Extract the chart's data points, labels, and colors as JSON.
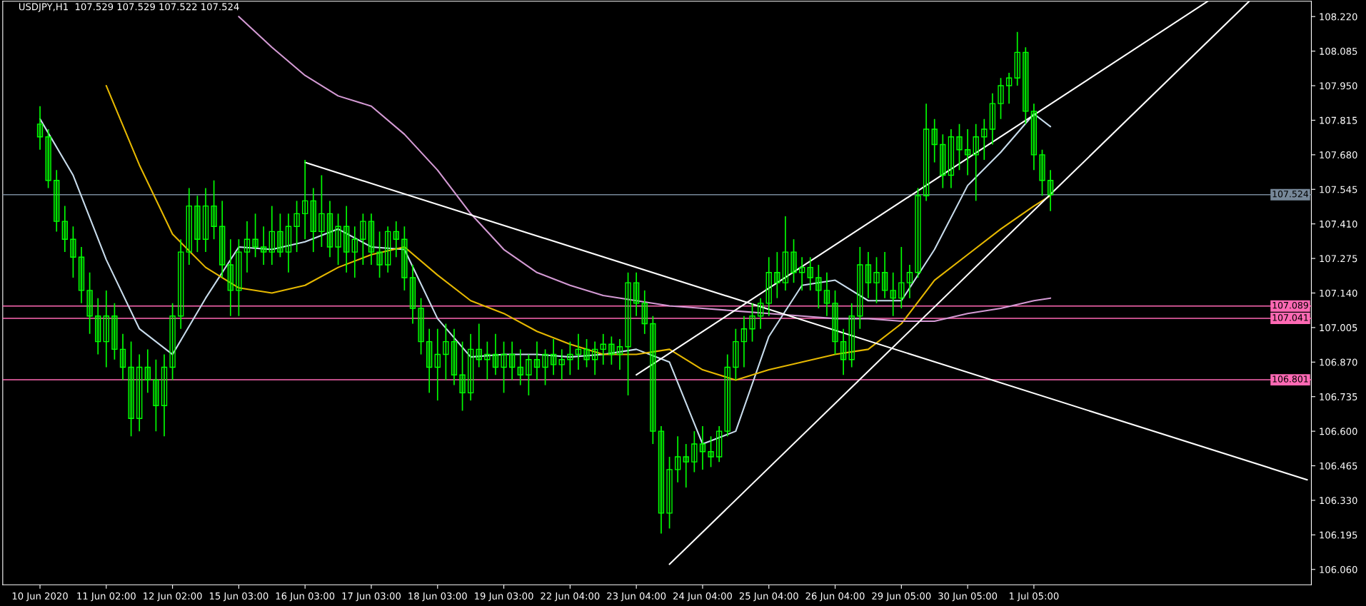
{
  "chart_data": {
    "type": "candlestick",
    "title": "USDJPY,H1  107.529 107.529 107.522 107.524",
    "color": "#00ff00",
    "categories": [
      "10 Jun 2020",
      null,
      null,
      null,
      null,
      null,
      null,
      null,
      "11 Jun 02:00",
      null,
      null,
      null,
      null,
      null,
      null,
      null,
      "12 Jun 02:00",
      null,
      null,
      null,
      null,
      null,
      null,
      null,
      "15 Jun 03:00",
      null,
      null,
      null,
      null,
      null,
      null,
      null,
      "16 Jun 03:00",
      null,
      null,
      null,
      null,
      null,
      null,
      null,
      "17 Jun 03:00",
      null,
      null,
      null,
      null,
      null,
      null,
      null,
      "18 Jun 03:00",
      null,
      null,
      null,
      null,
      null,
      null,
      null,
      "19 Jun 03:00",
      null,
      null,
      null,
      null,
      null,
      null,
      null,
      "22 Jun 04:00",
      null,
      null,
      null,
      null,
      null,
      null,
      null,
      "23 Jun 04:00",
      null,
      null,
      null,
      null,
      null,
      null,
      null,
      "24 Jun 04:00",
      null,
      null,
      null,
      null,
      null,
      null,
      null,
      "25 Jun 04:00",
      null,
      null,
      null,
      null,
      null,
      null,
      null,
      "26 Jun 04:00",
      null,
      null,
      null,
      null,
      null,
      null,
      null,
      "29 Jun 05:00",
      null,
      null,
      null,
      null,
      null,
      null,
      null,
      "30 Jun 05:00",
      null,
      null,
      null,
      null,
      null,
      null,
      null,
      "1 Jul 05:00",
      null,
      null,
      null,
      null,
      null,
      null,
      null,
      null,
      null,
      null,
      null,
      null,
      null,
      null,
      null,
      null,
      null,
      null,
      null,
      null,
      null,
      null,
      null,
      null,
      null,
      null,
      null,
      null,
      null,
      null,
      null,
      null,
      null
    ],
    "ohlc": [
      [
        107.8,
        107.87,
        107.7,
        107.75
      ],
      [
        107.75,
        107.78,
        107.55,
        107.58
      ],
      [
        107.58,
        107.62,
        107.38,
        107.42
      ],
      [
        107.42,
        107.48,
        107.3,
        107.35
      ],
      [
        107.35,
        107.4,
        107.2,
        107.28
      ],
      [
        107.28,
        107.32,
        107.1,
        107.15
      ],
      [
        107.15,
        107.22,
        106.98,
        107.05
      ],
      [
        107.05,
        107.12,
        106.9,
        106.95
      ],
      [
        106.95,
        107.15,
        106.85,
        107.05
      ],
      [
        107.05,
        107.1,
        106.88,
        106.92
      ],
      [
        106.92,
        106.98,
        106.8,
        106.85
      ],
      [
        106.85,
        106.95,
        106.58,
        106.65
      ],
      [
        106.65,
        106.9,
        106.6,
        106.85
      ],
      [
        106.85,
        106.92,
        106.75,
        106.8
      ],
      [
        106.8,
        106.88,
        106.6,
        106.7
      ],
      [
        106.7,
        106.9,
        106.58,
        106.85
      ],
      [
        106.85,
        107.1,
        106.8,
        107.05
      ],
      [
        107.05,
        107.35,
        107.0,
        107.3
      ],
      [
        107.3,
        107.55,
        107.25,
        107.48
      ],
      [
        107.48,
        107.52,
        107.3,
        107.35
      ],
      [
        107.35,
        107.55,
        107.3,
        107.48
      ],
      [
        107.48,
        107.58,
        107.35,
        107.4
      ],
      [
        107.4,
        107.5,
        107.2,
        107.25
      ],
      [
        107.25,
        107.35,
        107.05,
        107.15
      ],
      [
        107.15,
        107.35,
        107.05,
        107.3
      ],
      [
        107.3,
        107.42,
        107.22,
        107.35
      ],
      [
        107.35,
        107.45,
        107.28,
        107.32
      ],
      [
        107.32,
        107.4,
        107.25,
        107.3
      ],
      [
        107.3,
        107.48,
        107.25,
        107.38
      ],
      [
        107.38,
        107.45,
        107.28,
        107.3
      ],
      [
        107.3,
        107.45,
        107.22,
        107.4
      ],
      [
        107.4,
        107.5,
        107.3,
        107.45
      ],
      [
        107.45,
        107.66,
        107.35,
        107.5
      ],
      [
        107.5,
        107.55,
        107.3,
        107.38
      ],
      [
        107.38,
        107.6,
        107.32,
        107.45
      ],
      [
        107.45,
        107.5,
        107.28,
        107.32
      ],
      [
        107.32,
        107.45,
        107.25,
        107.4
      ],
      [
        107.4,
        107.48,
        107.22,
        107.3
      ],
      [
        107.3,
        107.4,
        107.2,
        107.35
      ],
      [
        107.35,
        107.45,
        107.25,
        107.42
      ],
      [
        107.42,
        107.45,
        107.25,
        107.3
      ],
      [
        107.3,
        107.38,
        107.2,
        107.25
      ],
      [
        107.25,
        107.4,
        107.22,
        107.38
      ],
      [
        107.38,
        107.42,
        107.28,
        107.35
      ],
      [
        107.35,
        107.4,
        107.15,
        107.2
      ],
      [
        107.2,
        107.25,
        107.02,
        107.08
      ],
      [
        107.08,
        107.12,
        106.9,
        106.95
      ],
      [
        106.95,
        107.0,
        106.75,
        106.85
      ],
      [
        106.85,
        107.0,
        106.72,
        106.9
      ],
      [
        106.9,
        107.02,
        106.8,
        106.95
      ],
      [
        106.95,
        107.0,
        106.78,
        106.82
      ],
      [
        106.82,
        106.95,
        106.68,
        106.75
      ],
      [
        106.75,
        106.98,
        106.72,
        106.92
      ],
      [
        106.92,
        107.02,
        106.85,
        106.88
      ],
      [
        106.88,
        106.95,
        106.8,
        106.9
      ],
      [
        106.9,
        106.98,
        106.82,
        106.85
      ],
      [
        106.85,
        106.95,
        106.75,
        106.9
      ],
      [
        106.9,
        106.95,
        106.8,
        106.85
      ],
      [
        106.85,
        106.92,
        106.78,
        106.82
      ],
      [
        106.82,
        106.9,
        106.74,
        106.88
      ],
      [
        106.88,
        106.95,
        106.8,
        106.85
      ],
      [
        106.85,
        106.92,
        106.78,
        106.9
      ],
      [
        106.9,
        106.96,
        106.82,
        106.86
      ],
      [
        106.86,
        106.92,
        106.8,
        106.88
      ],
      [
        106.88,
        106.95,
        106.82,
        106.9
      ],
      [
        106.9,
        106.98,
        106.84,
        106.92
      ],
      [
        106.92,
        106.96,
        106.85,
        106.88
      ],
      [
        106.88,
        106.95,
        106.82,
        106.92
      ],
      [
        106.92,
        106.98,
        106.86,
        106.94
      ],
      [
        106.94,
        106.97,
        106.86,
        106.9
      ],
      [
        106.9,
        106.96,
        106.84,
        106.93
      ],
      [
        106.93,
        107.22,
        106.74,
        107.18
      ],
      [
        107.18,
        107.22,
        107.05,
        107.1
      ],
      [
        107.1,
        107.15,
        106.98,
        107.02
      ],
      [
        107.02,
        107.05,
        106.55,
        106.6
      ],
      [
        106.6,
        106.62,
        106.2,
        106.28
      ],
      [
        106.28,
        106.5,
        106.22,
        106.45
      ],
      [
        106.45,
        106.58,
        106.4,
        106.5
      ],
      [
        106.5,
        106.55,
        106.38,
        106.48
      ],
      [
        106.48,
        106.6,
        106.44,
        106.55
      ],
      [
        106.55,
        106.62,
        106.45,
        106.52
      ],
      [
        106.52,
        106.58,
        106.46,
        106.5
      ],
      [
        106.5,
        106.62,
        106.48,
        106.6
      ],
      [
        106.6,
        106.9,
        106.58,
        106.85
      ],
      [
        106.85,
        107.0,
        106.8,
        106.95
      ],
      [
        106.95,
        107.05,
        106.85,
        107.0
      ],
      [
        107.0,
        107.1,
        106.95,
        107.05
      ],
      [
        107.05,
        107.12,
        107.0,
        107.1
      ],
      [
        107.1,
        107.28,
        107.05,
        107.22
      ],
      [
        107.22,
        107.3,
        107.12,
        107.18
      ],
      [
        107.18,
        107.44,
        107.15,
        107.3
      ],
      [
        107.3,
        107.35,
        107.18,
        107.22
      ],
      [
        107.22,
        107.28,
        107.15,
        107.24
      ],
      [
        107.24,
        107.28,
        107.15,
        107.2
      ],
      [
        107.2,
        107.25,
        107.08,
        107.15
      ],
      [
        107.15,
        107.22,
        107.05,
        107.1
      ],
      [
        107.1,
        107.15,
        106.9,
        106.95
      ],
      [
        106.95,
        107.0,
        106.82,
        106.88
      ],
      [
        106.88,
        107.1,
        106.85,
        107.05
      ],
      [
        107.05,
        107.32,
        107.0,
        107.25
      ],
      [
        107.25,
        107.3,
        107.12,
        107.18
      ],
      [
        107.18,
        107.28,
        107.1,
        107.22
      ],
      [
        107.22,
        107.3,
        107.12,
        107.15
      ],
      [
        107.15,
        107.22,
        107.05,
        107.12
      ],
      [
        107.12,
        107.32,
        107.08,
        107.18
      ],
      [
        107.18,
        107.25,
        107.12,
        107.22
      ],
      [
        107.22,
        107.55,
        107.2,
        107.52
      ],
      [
        107.52,
        107.88,
        107.5,
        107.78
      ],
      [
        107.78,
        107.82,
        107.65,
        107.72
      ],
      [
        107.72,
        107.76,
        107.55,
        107.6
      ],
      [
        107.6,
        107.78,
        107.55,
        107.75
      ],
      [
        107.75,
        107.8,
        107.62,
        107.7
      ],
      [
        107.7,
        107.78,
        107.6,
        107.68
      ],
      [
        107.68,
        107.8,
        107.5,
        107.75
      ],
      [
        107.75,
        107.82,
        107.66,
        107.78
      ],
      [
        107.78,
        107.92,
        107.72,
        107.88
      ],
      [
        107.88,
        107.98,
        107.82,
        107.95
      ],
      [
        107.95,
        108.0,
        107.88,
        107.98
      ],
      [
        107.98,
        108.16,
        107.95,
        108.08
      ],
      [
        108.08,
        108.1,
        107.8,
        107.85
      ],
      [
        107.85,
        107.88,
        107.62,
        107.68
      ],
      [
        107.68,
        107.7,
        107.52,
        107.58
      ],
      [
        107.58,
        107.62,
        107.46,
        107.524
      ],
      null,
      null,
      null,
      null,
      null,
      null,
      null,
      null,
      null,
      null,
      null,
      null,
      null,
      null,
      null,
      null,
      null,
      null,
      null,
      null,
      null,
      null,
      null,
      null,
      null,
      null,
      null,
      null,
      null,
      null,
      null
    ],
    "series": [
      {
        "type": "line",
        "color": "#c8dcec",
        "values": [
          107.82,
          null,
          null,
          null,
          107.6,
          null,
          null,
          null,
          107.27,
          null,
          null,
          null,
          107.0,
          null,
          null,
          null,
          106.9,
          null,
          null,
          null,
          107.12,
          null,
          null,
          null,
          107.32,
          null,
          null,
          null,
          107.31,
          null,
          null,
          null,
          107.34,
          null,
          null,
          null,
          107.39,
          null,
          null,
          null,
          107.32,
          null,
          null,
          null,
          107.31,
          null,
          null,
          null,
          107.04,
          null,
          null,
          null,
          106.89,
          null,
          null,
          null,
          106.9,
          null,
          null,
          null,
          106.9,
          null,
          null,
          null,
          106.89,
          null,
          null,
          null,
          106.9,
          null,
          null,
          null,
          106.92,
          null,
          null,
          null,
          106.87,
          null,
          null,
          null,
          106.55,
          null,
          null,
          null,
          106.6,
          null,
          null,
          null,
          106.97,
          null,
          null,
          null,
          107.17,
          null,
          null,
          null,
          107.19,
          null,
          null,
          null,
          107.11,
          null,
          null,
          null,
          107.11,
          null,
          null,
          null,
          107.31,
          null,
          null,
          null,
          107.56,
          null,
          null,
          null,
          107.69,
          null,
          null,
          null,
          107.84,
          null,
          107.79,
          null,
          null,
          null,
          null,
          null,
          null,
          null,
          null,
          null,
          null,
          null,
          null,
          null,
          null,
          null,
          null,
          null,
          null,
          null,
          null,
          null,
          null,
          null,
          null,
          null,
          null,
          null,
          null,
          null,
          null,
          null
        ]
      },
      {
        "type": "line",
        "color": "#e6b800",
        "values": [
          null,
          null,
          null,
          null,
          null,
          null,
          null,
          null,
          107.95,
          null,
          null,
          null,
          107.64,
          null,
          null,
          null,
          107.37,
          null,
          null,
          null,
          107.24,
          null,
          null,
          null,
          107.16,
          null,
          null,
          null,
          107.14,
          null,
          null,
          null,
          107.17,
          null,
          null,
          null,
          107.24,
          null,
          null,
          null,
          107.29,
          null,
          null,
          null,
          107.32,
          null,
          null,
          null,
          107.21,
          null,
          null,
          null,
          107.11,
          null,
          null,
          null,
          107.06,
          null,
          null,
          null,
          106.99,
          null,
          null,
          null,
          106.94,
          null,
          null,
          null,
          106.9,
          null,
          null,
          null,
          106.9,
          null,
          null,
          null,
          106.92,
          null,
          null,
          null,
          106.84,
          null,
          null,
          null,
          106.8,
          null,
          null,
          null,
          106.84,
          null,
          null,
          null,
          106.87,
          null,
          null,
          null,
          106.9,
          null,
          null,
          null,
          106.92,
          null,
          null,
          null,
          107.02,
          null,
          null,
          null,
          107.19,
          null,
          null,
          null,
          107.29,
          null,
          null,
          null,
          107.39,
          null,
          null,
          null,
          107.48,
          null,
          107.52,
          null,
          null,
          null,
          null,
          null,
          null,
          null,
          null,
          null,
          null,
          null,
          null,
          null,
          null,
          null,
          null,
          null,
          null,
          null,
          null,
          null,
          null,
          null,
          null,
          null,
          null,
          null,
          null,
          null,
          null,
          null
        ]
      },
      {
        "type": "line",
        "color": "#d49ad4",
        "values": [
          null,
          null,
          null,
          null,
          null,
          null,
          null,
          null,
          null,
          null,
          null,
          null,
          null,
          null,
          null,
          null,
          null,
          null,
          null,
          null,
          null,
          null,
          null,
          null,
          108.22,
          null,
          null,
          null,
          108.1,
          null,
          null,
          null,
          107.99,
          null,
          null,
          null,
          107.91,
          null,
          null,
          null,
          107.87,
          null,
          null,
          null,
          107.76,
          null,
          null,
          null,
          107.62,
          null,
          null,
          null,
          107.45,
          null,
          null,
          null,
          107.31,
          null,
          null,
          null,
          107.22,
          null,
          null,
          null,
          107.17,
          null,
          null,
          null,
          107.13,
          null,
          null,
          null,
          107.11,
          null,
          null,
          null,
          107.09,
          null,
          null,
          null,
          107.08,
          null,
          null,
          null,
          107.07,
          null,
          null,
          null,
          107.06,
          null,
          null,
          null,
          107.05,
          null,
          null,
          null,
          107.04,
          null,
          null,
          null,
          107.04,
          null,
          null,
          null,
          107.03,
          null,
          null,
          null,
          107.03,
          null,
          null,
          null,
          107.06,
          null,
          null,
          null,
          107.08,
          null,
          null,
          null,
          107.11,
          null,
          107.12,
          null,
          null,
          null,
          null,
          null,
          null,
          null,
          null,
          null,
          null,
          null,
          null,
          null,
          null,
          null,
          null,
          null,
          null,
          null,
          null,
          null,
          null,
          null,
          null,
          null,
          null,
          null,
          null,
          null,
          null,
          null
        ]
      },
      {
        "type": "line",
        "color": "#ffffff",
        "values": [
          null,
          null,
          null,
          null,
          null,
          null,
          null,
          null,
          null,
          null,
          null,
          null,
          null,
          null,
          null,
          null,
          null,
          null,
          null,
          null,
          null,
          null,
          null,
          null,
          null,
          null,
          null,
          null,
          null,
          null,
          null,
          null,
          107.65,
          null,
          null,
          null,
          null,
          null,
          null,
          null,
          null,
          null,
          null,
          null,
          null,
          null,
          null,
          null,
          null,
          null,
          null,
          null,
          null,
          null,
          null,
          null,
          null,
          null,
          null,
          null,
          null,
          null,
          null,
          null,
          null,
          null,
          null,
          null,
          null,
          null,
          null,
          null,
          null,
          null,
          null,
          null,
          null,
          null,
          null,
          null,
          null,
          null,
          null,
          null,
          null,
          null,
          null,
          null,
          null,
          null,
          null,
          null,
          null,
          null,
          null,
          null,
          null,
          null,
          null,
          null,
          null,
          null,
          null,
          null,
          null,
          null,
          null,
          null,
          null,
          null,
          null,
          null,
          null,
          null,
          null,
          null,
          null,
          null,
          null,
          null,
          null,
          null,
          null,
          null,
          null,
          null,
          null,
          null,
          null,
          null,
          null,
          null,
          null,
          null,
          null,
          null,
          null,
          null,
          null,
          null,
          null,
          null,
          null,
          null,
          null,
          null,
          null,
          null,
          null,
          null,
          null,
          null,
          null,
          106.41
        ]
      },
      {
        "type": "line",
        "color": "#ffffff",
        "values": [
          null,
          null,
          null,
          null,
          null,
          null,
          null,
          null,
          null,
          null,
          null,
          null,
          null,
          null,
          null,
          null,
          null,
          null,
          null,
          null,
          null,
          null,
          null,
          null,
          null,
          null,
          null,
          null,
          null,
          null,
          null,
          null,
          null,
          null,
          null,
          null,
          null,
          null,
          null,
          null,
          null,
          null,
          null,
          null,
          null,
          null,
          null,
          null,
          null,
          null,
          null,
          null,
          null,
          null,
          null,
          null,
          null,
          null,
          null,
          null,
          null,
          null,
          null,
          null,
          null,
          null,
          null,
          null,
          null,
          null,
          null,
          null,
          null,
          null,
          null,
          null,
          106.08,
          null,
          null,
          null,
          null,
          null,
          null,
          null,
          null,
          null,
          null,
          null,
          null,
          null,
          null,
          null,
          null,
          null,
          null,
          null,
          null,
          null,
          null,
          null,
          null,
          null,
          null,
          null,
          null,
          null,
          null,
          null,
          null,
          null,
          null,
          null,
          null,
          null,
          null,
          null,
          null,
          null,
          null,
          null,
          null,
          null,
          null,
          null,
          null,
          null,
          null,
          null,
          null,
          null,
          null,
          null,
          null,
          null,
          null,
          null,
          null,
          null,
          null,
          null,
          null,
          null,
          null,
          null,
          null,
          null,
          108.28,
          null,
          null,
          null,
          null,
          null,
          null,
          null
        ]
      },
      {
        "type": "line",
        "color": "#ffffff",
        "values": [
          null,
          null,
          null,
          null,
          null,
          null,
          null,
          null,
          null,
          null,
          null,
          null,
          null,
          null,
          null,
          null,
          null,
          null,
          null,
          null,
          null,
          null,
          null,
          null,
          null,
          null,
          null,
          null,
          null,
          null,
          null,
          null,
          null,
          null,
          null,
          null,
          null,
          null,
          null,
          null,
          null,
          null,
          null,
          null,
          null,
          null,
          null,
          null,
          null,
          null,
          null,
          null,
          null,
          null,
          null,
          null,
          null,
          null,
          null,
          null,
          null,
          null,
          null,
          null,
          null,
          null,
          null,
          null,
          null,
          null,
          null,
          null,
          106.82,
          null,
          null,
          null,
          null,
          null,
          null,
          null,
          null,
          null,
          null,
          null,
          null,
          null,
          null,
          null,
          null,
          null,
          null,
          null,
          null,
          null,
          null,
          null,
          null,
          null,
          null,
          null,
          null,
          null,
          null,
          null,
          null,
          null,
          null,
          null,
          null,
          null,
          null,
          null,
          null,
          null,
          null,
          null,
          null,
          null,
          null,
          null,
          null,
          null,
          null,
          null,
          null,
          null,
          null,
          null,
          null,
          null,
          null,
          null,
          null,
          null,
          null,
          null,
          null,
          null,
          null,
          null,
          null,
          108.28,
          null,
          null,
          null,
          null,
          null,
          null,
          null,
          null,
          null,
          null,
          null,
          null
        ]
      }
    ],
    "ylim": [
      106.0,
      108.28
    ],
    "yticks": [
      {
        "value": 106.06,
        "label": "106.060"
      },
      {
        "value": 106.195,
        "label": "106.195"
      },
      {
        "value": 106.33,
        "label": "106.330"
      },
      {
        "value": 106.465,
        "label": "106.465"
      },
      {
        "value": 106.6,
        "label": "106.600"
      },
      {
        "value": 106.735,
        "label": "106.735"
      },
      {
        "value": 106.87,
        "label": "106.870"
      },
      {
        "value": 107.005,
        "label": "107.005"
      },
      {
        "value": 107.14,
        "label": "107.140"
      },
      {
        "value": 107.275,
        "label": "107.275"
      },
      {
        "value": 107.41,
        "label": "107.410"
      },
      {
        "value": 107.545,
        "label": "107.545"
      },
      {
        "value": 107.68,
        "label": "107.680"
      },
      {
        "value": 107.815,
        "label": "107.815"
      },
      {
        "value": 107.95,
        "label": "107.950"
      },
      {
        "value": 108.085,
        "label": "108.085"
      },
      {
        "value": 108.22,
        "label": "108.220"
      }
    ],
    "ref_lines": [
      {
        "axis": "y",
        "value": 107.524,
        "label": "107.524",
        "color": "#778899"
      },
      {
        "axis": "y",
        "value": 107.089,
        "label": "107.089",
        "color": "#ff69b4"
      },
      {
        "axis": "y",
        "value": 107.041,
        "label": "107.041",
        "color": "#ff69b4"
      },
      {
        "axis": "y",
        "value": 106.801,
        "label": "106.801",
        "color": "#ff69b4"
      }
    ]
  }
}
